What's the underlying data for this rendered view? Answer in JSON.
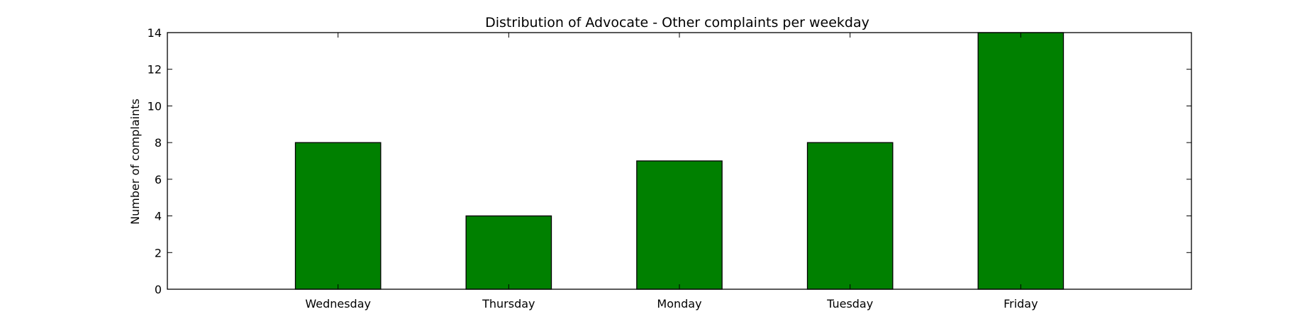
{
  "chart_data": {
    "type": "bar",
    "title": "Distribution of  Advocate - Other complaints per weekday",
    "xlabel": "",
    "ylabel": "Number of complaints",
    "categories": [
      "Wednesday",
      "Thursday",
      "Monday",
      "Tuesday",
      "Friday"
    ],
    "values": [
      8,
      4,
      7,
      8,
      14
    ],
    "ylim": [
      0,
      14
    ],
    "yticks": [
      0,
      2,
      4,
      6,
      8,
      10,
      12,
      14
    ],
    "xlim": [
      -1,
      5
    ],
    "grid": false,
    "legend": "none",
    "colors": {
      "bar_fill": "#008000",
      "bar_edge": "#000000",
      "axes": "#000000",
      "background": "#ffffff"
    }
  }
}
